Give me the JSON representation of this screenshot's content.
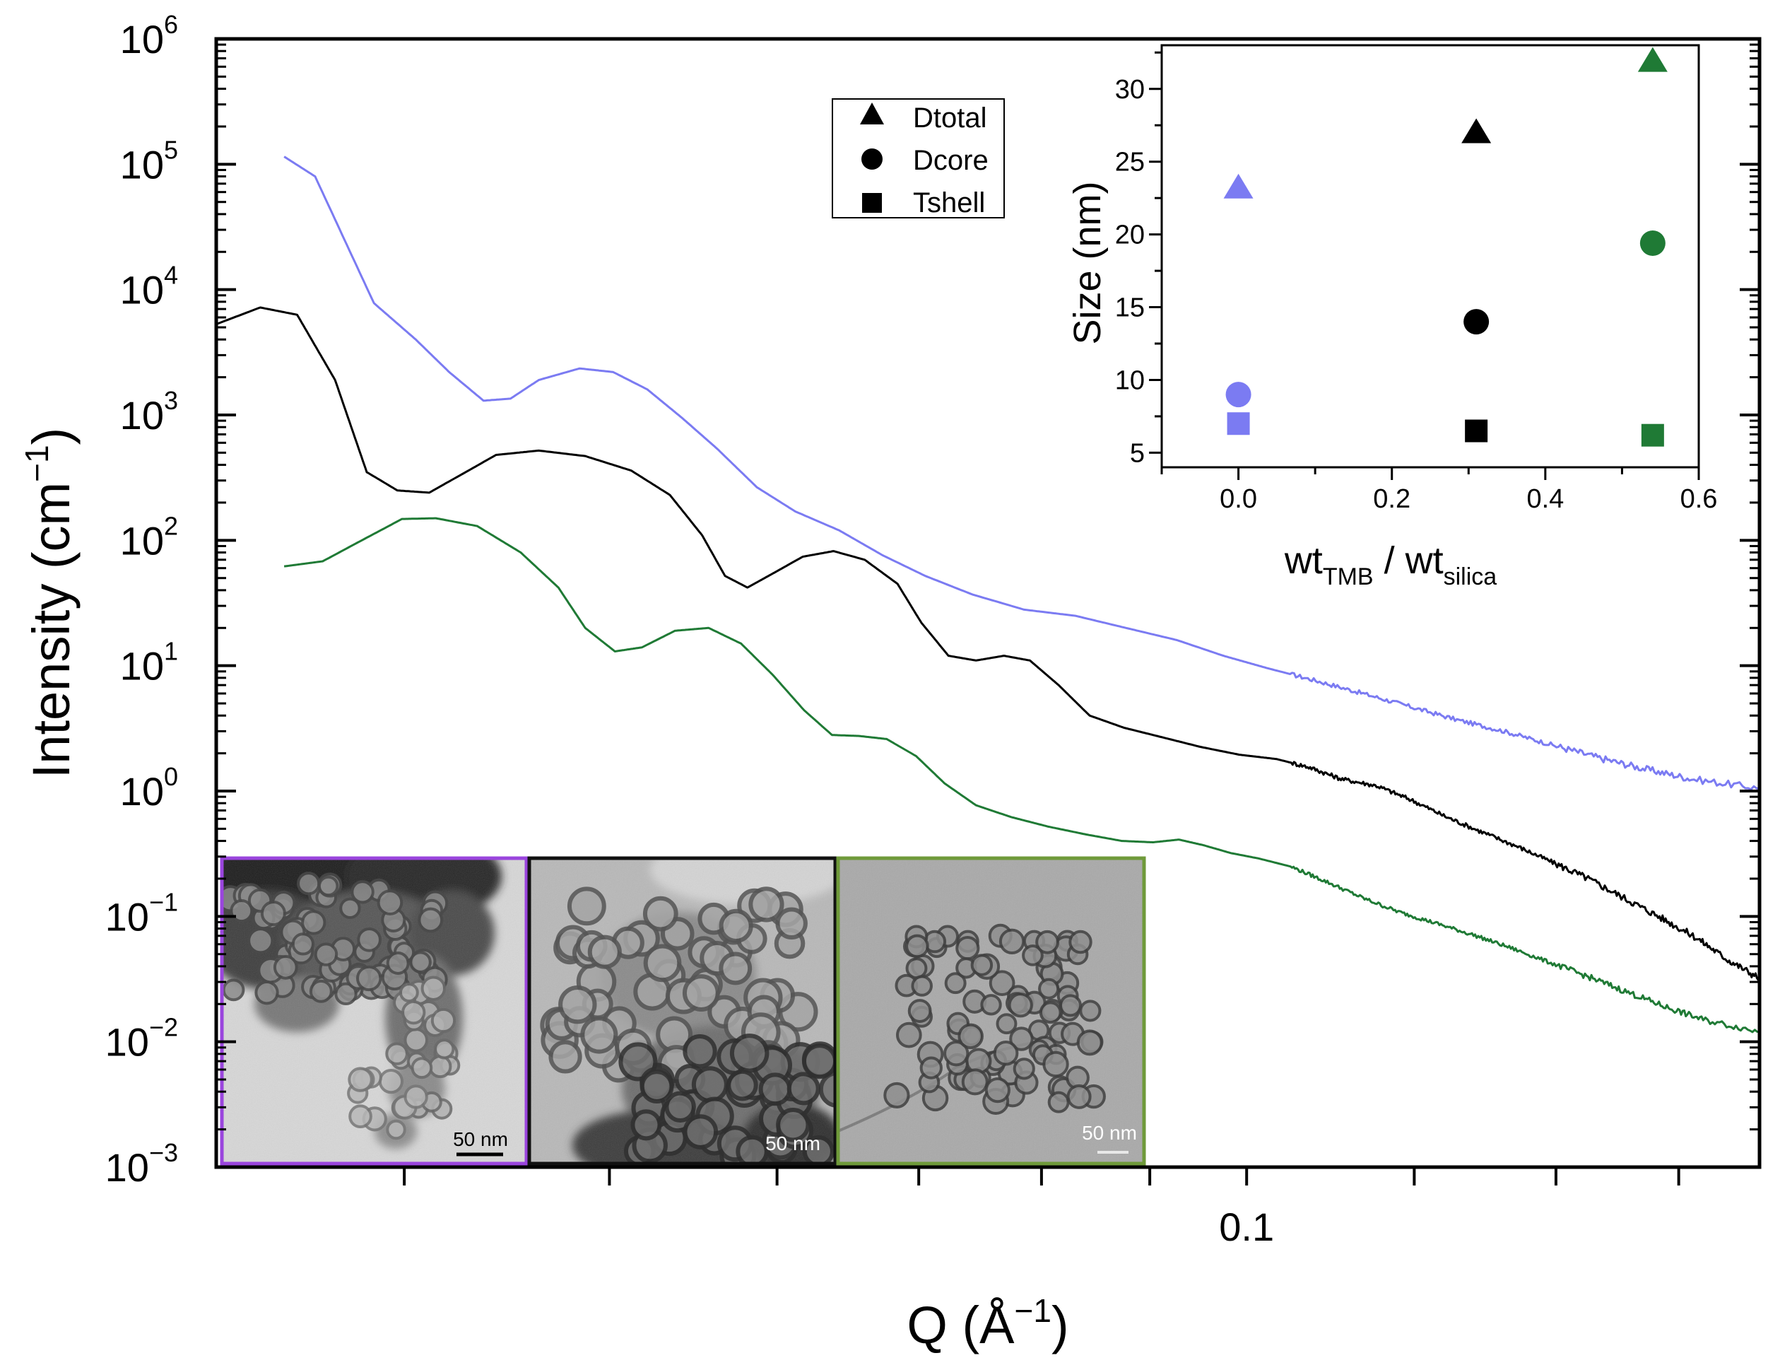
{
  "colors": {
    "blue": "#7b7bf2",
    "black": "#000000",
    "green": "#1f7a35",
    "purple": "#9a45dd",
    "olive": "#6f9a3a"
  },
  "chart_data": [
    {
      "type": "line",
      "title": "",
      "xscale": "log",
      "yscale": "log",
      "xlabel": "Q (Å",
      "xlabel_sup": "−1",
      "xlabel_end": ")",
      "ylabel": "Intensity (cm",
      "ylabel_sup": "−1",
      "ylabel_end": ")",
      "xlim": [
        0.0326,
        0.1747
      ],
      "ylim": [
        0.001,
        1000000
      ],
      "xtick_label": "0.1",
      "xtick_label_value": 0.1,
      "xticks_major": [
        0.04,
        0.05,
        0.06,
        0.07,
        0.08,
        0.09,
        0.1,
        0.12,
        0.14,
        0.16
      ],
      "ytick_labels": [
        {
          "base": "10",
          "exp": "−3",
          "value": 0.001
        },
        {
          "base": "10",
          "exp": "−2",
          "value": 0.01
        },
        {
          "base": "10",
          "exp": "−1",
          "value": 0.1
        },
        {
          "base": "10",
          "exp": "0",
          "value": 1
        },
        {
          "base": "10",
          "exp": "1",
          "value": 10
        },
        {
          "base": "10",
          "exp": "2",
          "value": 100
        },
        {
          "base": "10",
          "exp": "3",
          "value": 1000
        },
        {
          "base": "10",
          "exp": "4",
          "value": 10000
        },
        {
          "base": "10",
          "exp": "5",
          "value": 100000
        },
        {
          "base": "10",
          "exp": "6",
          "value": 1000000
        }
      ],
      "series": [
        {
          "name": "blue",
          "color": "#7b7bf2",
          "noise": 0.035,
          "points": [
            [
              0.0351,
              115000
            ],
            [
              0.0363,
              80000
            ],
            [
              0.0387,
              7800
            ],
            [
              0.0405,
              4000
            ],
            [
              0.042,
              2200
            ],
            [
              0.0436,
              1300
            ],
            [
              0.0449,
              1350
            ],
            [
              0.0463,
              1900
            ],
            [
              0.0484,
              2350
            ],
            [
              0.0502,
              2200
            ],
            [
              0.0521,
              1600
            ],
            [
              0.0541,
              950
            ],
            [
              0.0562,
              540
            ],
            [
              0.0587,
              265
            ],
            [
              0.0612,
              170
            ],
            [
              0.0642,
              120
            ],
            [
              0.0673,
              76
            ],
            [
              0.0705,
              52
            ],
            [
              0.0742,
              37
            ],
            [
              0.0785,
              28
            ],
            [
              0.083,
              25
            ],
            [
              0.0877,
              20
            ],
            [
              0.0927,
              16
            ],
            [
              0.0975,
              12
            ],
            [
              0.1024,
              9.5
            ],
            [
              0.1078,
              7.6
            ],
            [
              0.1135,
              6.0
            ],
            [
              0.1195,
              4.7
            ],
            [
              0.1257,
              3.7
            ],
            [
              0.1323,
              3.0
            ],
            [
              0.1392,
              2.35
            ],
            [
              0.1465,
              1.85
            ],
            [
              0.1542,
              1.5
            ],
            [
              0.1622,
              1.25
            ],
            [
              0.1747,
              1.05
            ]
          ]
        },
        {
          "name": "black",
          "color": "#000000",
          "noise": 0.035,
          "points": [
            [
              0.0326,
              5300
            ],
            [
              0.0342,
              7200
            ],
            [
              0.0356,
              6300
            ],
            [
              0.0371,
              1900
            ],
            [
              0.0384,
              350
            ],
            [
              0.0397,
              250
            ],
            [
              0.0411,
              240
            ],
            [
              0.0425,
              330
            ],
            [
              0.0442,
              480
            ],
            [
              0.0463,
              520
            ],
            [
              0.0487,
              470
            ],
            [
              0.0512,
              360
            ],
            [
              0.0534,
              230
            ],
            [
              0.0553,
              110
            ],
            [
              0.0567,
              52
            ],
            [
              0.0581,
              42
            ],
            [
              0.0598,
              55
            ],
            [
              0.0617,
              74
            ],
            [
              0.0638,
              82
            ],
            [
              0.066,
              70
            ],
            [
              0.0684,
              45
            ],
            [
              0.0702,
              22
            ],
            [
              0.0723,
              12
            ],
            [
              0.0745,
              11
            ],
            [
              0.0768,
              12
            ],
            [
              0.079,
              11
            ],
            [
              0.0815,
              7
            ],
            [
              0.0843,
              4.0
            ],
            [
              0.0875,
              3.2
            ],
            [
              0.0911,
              2.7
            ],
            [
              0.0951,
              2.25
            ],
            [
              0.0992,
              1.95
            ],
            [
              0.1033,
              1.8
            ],
            [
              0.107,
              1.55
            ],
            [
              0.1108,
              1.25
            ],
            [
              0.1152,
              1.1
            ],
            [
              0.1196,
              0.85
            ],
            [
              0.1243,
              0.62
            ],
            [
              0.1292,
              0.47
            ],
            [
              0.1343,
              0.36
            ],
            [
              0.1395,
              0.27
            ],
            [
              0.145,
              0.2
            ],
            [
              0.1508,
              0.14
            ],
            [
              0.1567,
              0.099
            ],
            [
              0.163,
              0.068
            ],
            [
              0.1688,
              0.045
            ],
            [
              0.1747,
              0.032
            ]
          ]
        },
        {
          "name": "green",
          "color": "#1f7a35",
          "noise": 0.03,
          "points": [
            [
              0.0351,
              62
            ],
            [
              0.0366,
              68
            ],
            [
              0.0384,
              105
            ],
            [
              0.0399,
              148
            ],
            [
              0.0414,
              150
            ],
            [
              0.0433,
              130
            ],
            [
              0.0454,
              80
            ],
            [
              0.0473,
              42
            ],
            [
              0.0487,
              20
            ],
            [
              0.0503,
              13
            ],
            [
              0.0518,
              14
            ],
            [
              0.0537,
              19
            ],
            [
              0.0557,
              20
            ],
            [
              0.0577,
              15
            ],
            [
              0.0597,
              8.5
            ],
            [
              0.0618,
              4.4
            ],
            [
              0.0637,
              2.8
            ],
            [
              0.0656,
              2.75
            ],
            [
              0.0676,
              2.6
            ],
            [
              0.0698,
              1.9
            ],
            [
              0.072,
              1.15
            ],
            [
              0.0745,
              0.77
            ],
            [
              0.0774,
              0.62
            ],
            [
              0.0806,
              0.52
            ],
            [
              0.084,
              0.45
            ],
            [
              0.0873,
              0.4
            ],
            [
              0.0903,
              0.39
            ],
            [
              0.0929,
              0.41
            ],
            [
              0.0954,
              0.37
            ],
            [
              0.0983,
              0.32
            ],
            [
              0.1013,
              0.29
            ],
            [
              0.1049,
              0.25
            ],
            [
              0.109,
              0.19
            ],
            [
              0.1135,
              0.14
            ],
            [
              0.1181,
              0.108
            ],
            [
              0.1229,
              0.088
            ],
            [
              0.128,
              0.071
            ],
            [
              0.1333,
              0.056
            ],
            [
              0.139,
              0.043
            ],
            [
              0.145,
              0.033
            ],
            [
              0.1512,
              0.025
            ],
            [
              0.1577,
              0.019
            ],
            [
              0.1643,
              0.015
            ],
            [
              0.1747,
              0.012
            ]
          ]
        }
      ]
    },
    {
      "type": "scatter",
      "title": "",
      "xlabel": "wt",
      "xlabel_sub1": "TMB",
      "xlabel_mid": " / wt",
      "xlabel_sub2": "silica",
      "ylabel": "Size (nm)",
      "xlim": [
        -0.1,
        0.6
      ],
      "ylim": [
        4,
        33
      ],
      "xticks": [
        {
          "v": 0.0,
          "label": "0.0"
        },
        {
          "v": 0.2,
          "label": "0.2"
        },
        {
          "v": 0.4,
          "label": "0.4"
        },
        {
          "v": 0.6,
          "label": "0.6"
        }
      ],
      "yticks": [
        {
          "v": 5,
          "label": "5"
        },
        {
          "v": 10,
          "label": "10"
        },
        {
          "v": 15,
          "label": "15"
        },
        {
          "v": 20,
          "label": "20"
        },
        {
          "v": 25,
          "label": "25"
        },
        {
          "v": 30,
          "label": "30"
        }
      ],
      "legend_position": "upper-left",
      "legend": [
        {
          "label": "Dtotal",
          "marker": "triangle"
        },
        {
          "label": "Dcore",
          "marker": "circle"
        },
        {
          "label": "Tshell",
          "marker": "square"
        }
      ],
      "series": [
        {
          "name": "Dtotal",
          "marker": "triangle",
          "points": [
            {
              "x": 0.0,
              "y": 23.2,
              "color": "#7b7bf2"
            },
            {
              "x": 0.31,
              "y": 27.0,
              "color": "#000000"
            },
            {
              "x": 0.54,
              "y": 31.9,
              "color": "#1f7a35"
            }
          ]
        },
        {
          "name": "Dcore",
          "marker": "circle",
          "points": [
            {
              "x": 0.0,
              "y": 9.0,
              "color": "#7b7bf2"
            },
            {
              "x": 0.31,
              "y": 14.0,
              "color": "#000000"
            },
            {
              "x": 0.54,
              "y": 19.4,
              "color": "#1f7a35"
            }
          ]
        },
        {
          "name": "Tshell",
          "marker": "square",
          "points": [
            {
              "x": 0.0,
              "y": 7.0,
              "color": "#7b7bf2"
            },
            {
              "x": 0.31,
              "y": 6.5,
              "color": "#000000"
            },
            {
              "x": 0.54,
              "y": 6.2,
              "color": "#1f7a35"
            }
          ]
        }
      ]
    }
  ],
  "tem_images": [
    {
      "name": "tem-image-blue",
      "scale_bar": "50 nm",
      "border_color": "#9a45dd"
    },
    {
      "name": "tem-image-black",
      "scale_bar": "50 nm",
      "border_color": "#000000"
    },
    {
      "name": "tem-image-green",
      "scale_bar": "50 nm",
      "border_color": "#6f9a3a"
    }
  ]
}
